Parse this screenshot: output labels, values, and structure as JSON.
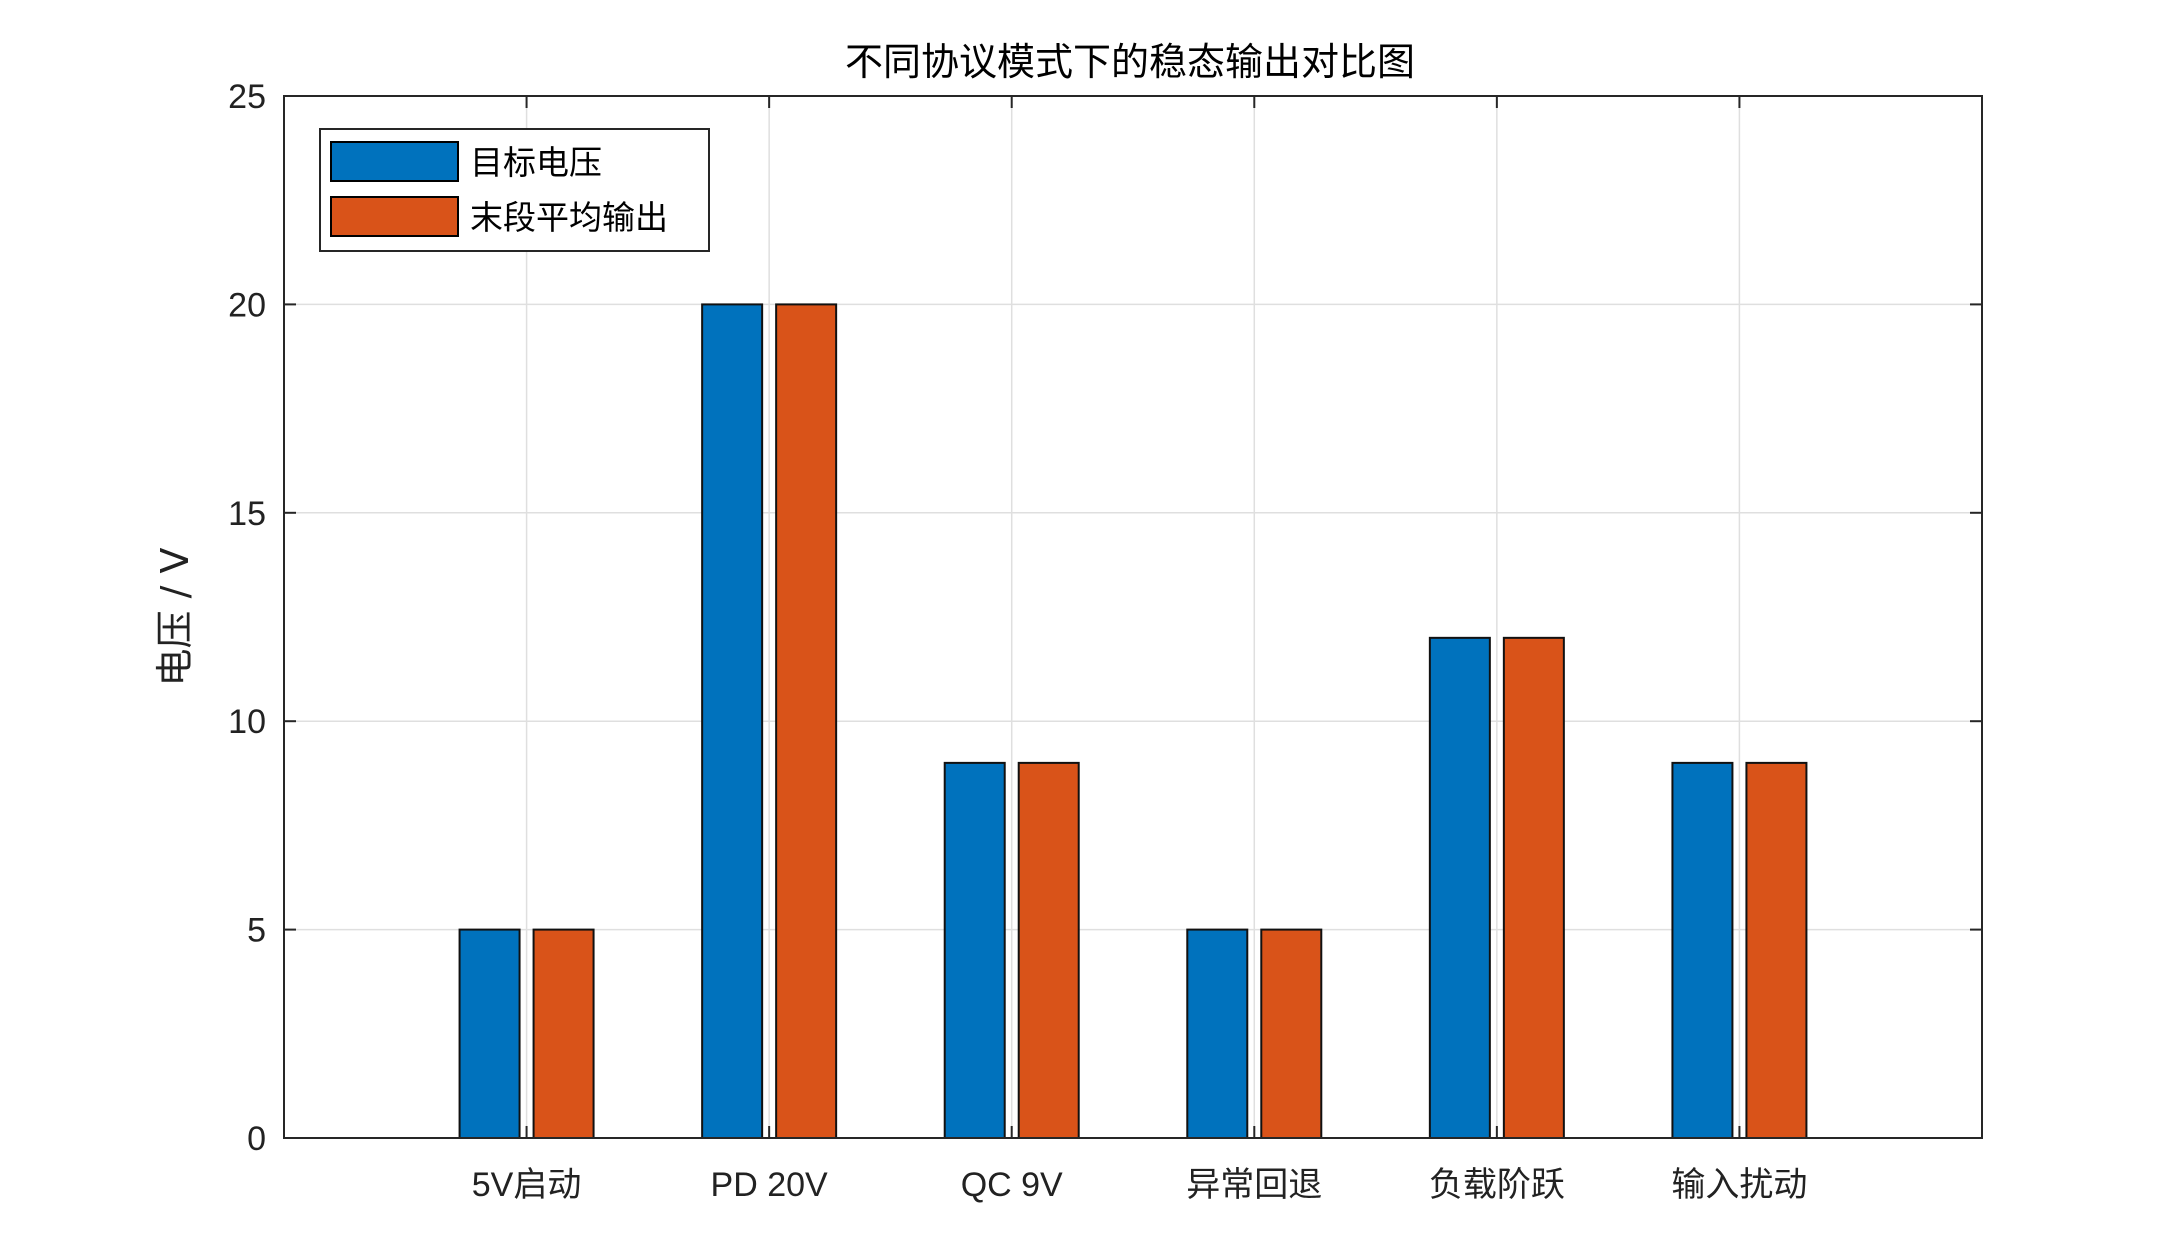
{
  "chart_data": {
    "type": "bar",
    "title": "不同协议模式下的稳态输出对比图",
    "xlabel": "",
    "ylabel": "电压 / V",
    "categories": [
      "5V启动",
      "PD 20V",
      "QC 9V",
      "异常回退",
      "负载阶跃",
      "输入扰动"
    ],
    "series": [
      {
        "name": "目标电压",
        "values": [
          5,
          20,
          9,
          5,
          12,
          9
        ],
        "color": "#0072BD"
      },
      {
        "name": "末段平均输出",
        "values": [
          5,
          20,
          9,
          5,
          12,
          9
        ],
        "color": "#D95319"
      }
    ],
    "ylim": [
      0,
      25
    ],
    "yticks": [
      "0",
      "5",
      "10",
      "15",
      "20",
      "25"
    ],
    "grid": true,
    "legend_position": "top-left"
  }
}
